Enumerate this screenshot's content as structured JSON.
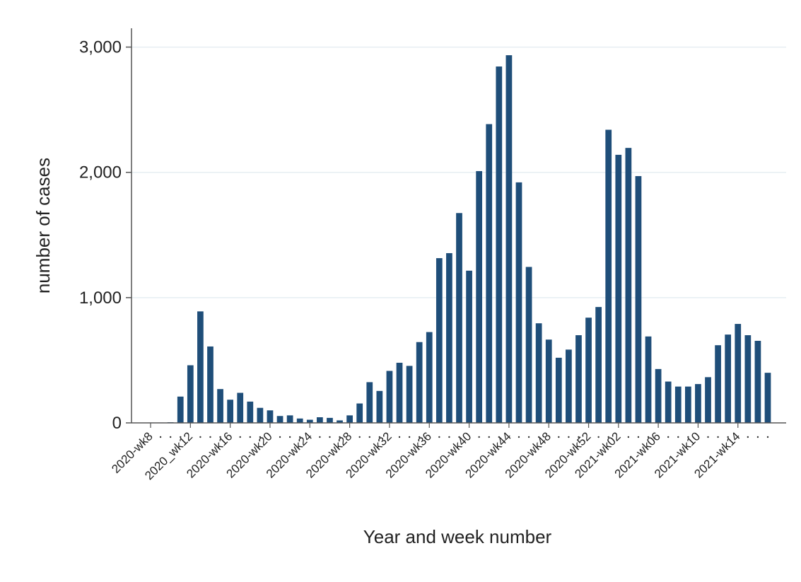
{
  "chart_data": {
    "type": "bar",
    "xlabel": "Year and week number",
    "ylabel": "number of cases",
    "ylim": [
      0,
      3150
    ],
    "yticks": [
      0,
      1000,
      2000,
      3000
    ],
    "ytick_labels": [
      "0",
      "1,000",
      "2,000",
      "3,000"
    ],
    "grid": "horizontal",
    "bar_color": "#1f4e79",
    "grid_color": "#e6eef2",
    "x_tick_labels": [
      {
        "index": 0,
        "label": "2020-wk8"
      },
      {
        "index": 4,
        "label": "2020_wk12"
      },
      {
        "index": 8,
        "label": "2020-wk16"
      },
      {
        "index": 12,
        "label": "2020-wk20"
      },
      {
        "index": 16,
        "label": "2020-wk24"
      },
      {
        "index": 20,
        "label": "2020-wk28"
      },
      {
        "index": 24,
        "label": "2020-wk32"
      },
      {
        "index": 28,
        "label": "2020-wk36"
      },
      {
        "index": 32,
        "label": "2020-wk40"
      },
      {
        "index": 36,
        "label": "2020-wk44"
      },
      {
        "index": 40,
        "label": "2020-wk48"
      },
      {
        "index": 44,
        "label": "2020-wk52"
      },
      {
        "index": 47,
        "label": "2021-wk02"
      },
      {
        "index": 51,
        "label": "2021-wk06"
      },
      {
        "index": 55,
        "label": "2021-wk10"
      },
      {
        "index": 59,
        "label": "2021-wk14"
      }
    ],
    "values": [
      3,
      3,
      5,
      210,
      460,
      890,
      610,
      270,
      185,
      240,
      170,
      120,
      100,
      55,
      60,
      35,
      25,
      45,
      40,
      20,
      60,
      155,
      325,
      255,
      415,
      480,
      455,
      645,
      725,
      1315,
      1355,
      1675,
      1215,
      2010,
      2385,
      2845,
      2935,
      1920,
      1245,
      795,
      665,
      520,
      585,
      700,
      840,
      925,
      2340,
      2140,
      2195,
      1970,
      690,
      430,
      330,
      290,
      290,
      310,
      365,
      620,
      705,
      790,
      700,
      655,
      400
    ]
  }
}
